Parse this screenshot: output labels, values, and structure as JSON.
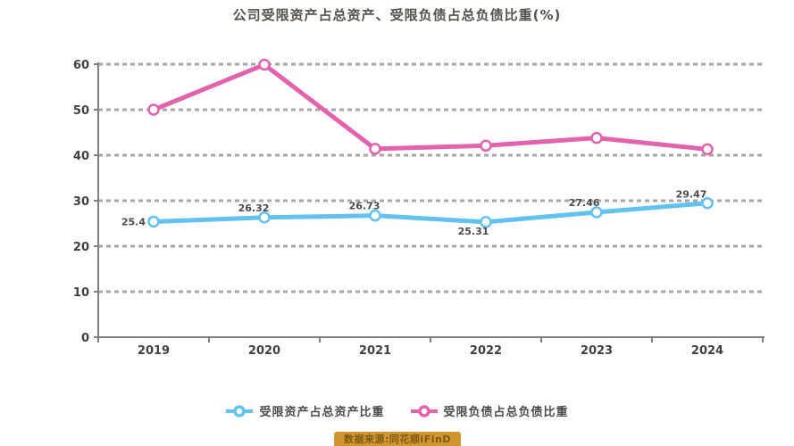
{
  "chart_data": {
    "type": "line",
    "title": "公司受限资产占总资产、受限负债占总负债比重(%)",
    "categories": [
      "2019",
      "2020",
      "2021",
      "2022",
      "2023",
      "2024"
    ],
    "series": [
      {
        "name": "受限资产占总资产比重",
        "color": "#63c1f0",
        "values": [
          25.4,
          26.32,
          26.73,
          25.31,
          27.46,
          29.47
        ],
        "labels": [
          "25.4",
          "26.32",
          "26.73",
          "25.31",
          "27.46",
          "29.47"
        ],
        "show_labels": true
      },
      {
        "name": "受限负债占总负债比重",
        "color": "#e362ae",
        "values": [
          50.0,
          59.9,
          41.4,
          42.1,
          43.8,
          41.3
        ],
        "labels": [],
        "show_labels": false
      }
    ],
    "ylim": [
      0,
      60
    ],
    "ytick_step": 10,
    "ytick_labels": [
      "0",
      "10",
      "20",
      "30",
      "40",
      "50",
      "60"
    ],
    "grid": "horizontal-dashed",
    "legend_position": "bottom",
    "marker": "ring"
  },
  "colors": {
    "accent_blue": "#63c1f0",
    "accent_pink": "#e362ae",
    "grid": "#a6a6a6",
    "axis": "#808080",
    "tick_text": "#404040",
    "data_label": "#4a4a4a",
    "title_text": "#55504b",
    "badge_bg": "#d1962f",
    "badge_text": "#7c5a13"
  },
  "watermark": {
    "text": "数据来源:同花顺iFinD"
  }
}
